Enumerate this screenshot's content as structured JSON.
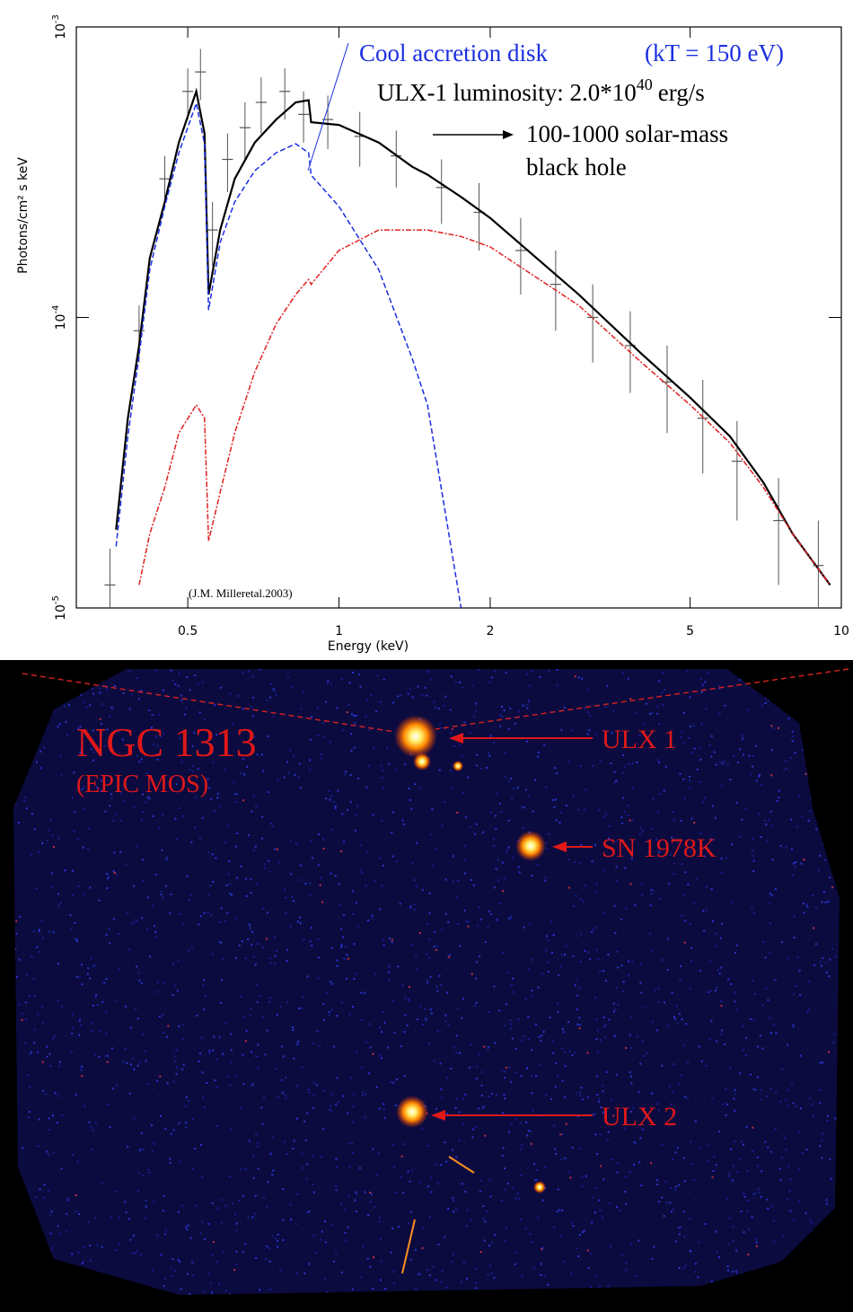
{
  "chart_data": {
    "type": "line",
    "xlabel": "Energy (keV)",
    "ylabel": "Photons/cm² s keV",
    "xlog": true,
    "ylog": true,
    "xlim": [
      0.3,
      10
    ],
    "ylim": [
      1e-05,
      0.001
    ],
    "xticks": [
      0.5,
      1,
      2,
      5,
      10
    ],
    "yticks": [
      {
        "value": 1e-05,
        "label": "10",
        "exponent": "-5"
      },
      {
        "value": 0.0001,
        "label": "10",
        "exponent": "-4"
      },
      {
        "value": 0.001,
        "label": "10",
        "exponent": "-3"
      }
    ],
    "x": [
      0.36,
      0.38,
      0.4,
      0.42,
      0.45,
      0.48,
      0.52,
      0.54,
      0.55,
      0.58,
      0.62,
      0.68,
      0.75,
      0.82,
      0.87,
      0.88,
      1.0,
      1.2,
      1.4,
      1.5,
      1.75,
      2.0,
      3.0,
      4.0,
      5.0,
      6.0,
      7.0,
      8.0,
      9.5
    ],
    "series": [
      {
        "color": "#000000",
        "dash": "none",
        "values": [
          1.86e-05,
          4.5e-05,
          8e-05,
          0.00016,
          0.00025,
          0.0004,
          0.0006,
          0.00043,
          0.00012,
          0.0002,
          0.0003,
          0.0004,
          0.00048,
          0.00055,
          0.00056,
          0.00047,
          0.00046,
          0.0004,
          0.00033,
          0.00031,
          0.00026,
          0.00022,
          0.00012,
          7.5e-05,
          5.3e-05,
          3.9e-05,
          2.7e-05,
          1.8e-05,
          1.2e-05
        ]
      },
      {
        "color": "#1a2fe0",
        "dash": "6,3",
        "values": [
          1.63e-05,
          3.9e-05,
          7.4e-05,
          0.000146,
          0.000241,
          0.000369,
          0.000546,
          0.000396,
          0.000106,
          0.000181,
          0.00025,
          0.00032,
          0.000369,
          0.000396,
          0.000369,
          0.000309,
          0.000241,
          0.000146,
          7.2e-05,
          5e-05,
          1e-05,
          null,
          null,
          null,
          null,
          null,
          null,
          null,
          null
        ]
      },
      {
        "color": "#e02020",
        "dash": "6,2,2,2",
        "values": [
          null,
          null,
          1.2e-05,
          1.8e-05,
          2.6e-05,
          4e-05,
          5e-05,
          4.5e-05,
          1.7e-05,
          2.5e-05,
          4e-05,
          6.5e-05,
          9.5e-05,
          0.00012,
          0.000135,
          0.00013,
          0.00017,
          0.0002,
          0.0002,
          0.0002,
          0.00019,
          0.000175,
          0.00011,
          7e-05,
          5e-05,
          3.7e-05,
          2.6e-05,
          1.8e-05,
          1.2e-05
        ]
      }
    ],
    "points": {
      "color": "#555555",
      "x": [
        0.35,
        0.4,
        0.45,
        0.5,
        0.53,
        0.56,
        0.6,
        0.65,
        0.7,
        0.78,
        0.85,
        0.95,
        1.1,
        1.3,
        1.6,
        1.9,
        2.3,
        2.7,
        3.2,
        3.8,
        4.5,
        5.3,
        6.2,
        7.5,
        9.0
      ],
      "values": [
        1.2e-05,
        9e-05,
        0.0003,
        0.0006,
        0.0007,
        0.0002,
        0.00035,
        0.00045,
        0.00055,
        0.0006,
        0.0005,
        0.00048,
        0.00042,
        0.00036,
        0.00028,
        0.00023,
        0.00017,
        0.00013,
        0.0001,
        8e-05,
        6e-05,
        4.5e-05,
        3.2e-05,
        2e-05,
        1.4e-05
      ],
      "errors": [
        4e-06,
        2e-05,
        6e-05,
        0.00012,
        0.00014,
        5e-05,
        8e-05,
        0.0001,
        0.00012,
        0.00012,
        0.0001,
        0.0001,
        9e-05,
        8e-05,
        7e-05,
        6e-05,
        5e-05,
        4e-05,
        3e-05,
        2.5e-05,
        2e-05,
        1.6e-05,
        1.2e-05,
        8e-06,
        6e-06
      ]
    },
    "annotations": {
      "disk": "Cool accretion disk",
      "kt": "(kT = 150 eV)",
      "luminosity": {
        "text": "ULX-1 luminosity: 2.0*10",
        "exponent": "40",
        "unit": "erg/s"
      },
      "mass1": "100-1000 solar-mass",
      "mass2": "black hole",
      "credit": "(J.M. Milleretal.2003)"
    }
  },
  "image": {
    "title": "NGC 1313",
    "subtitle": "(EPIC MOS)",
    "labels": [
      "ULX 1",
      "SN 1978K",
      "ULX 2"
    ]
  }
}
